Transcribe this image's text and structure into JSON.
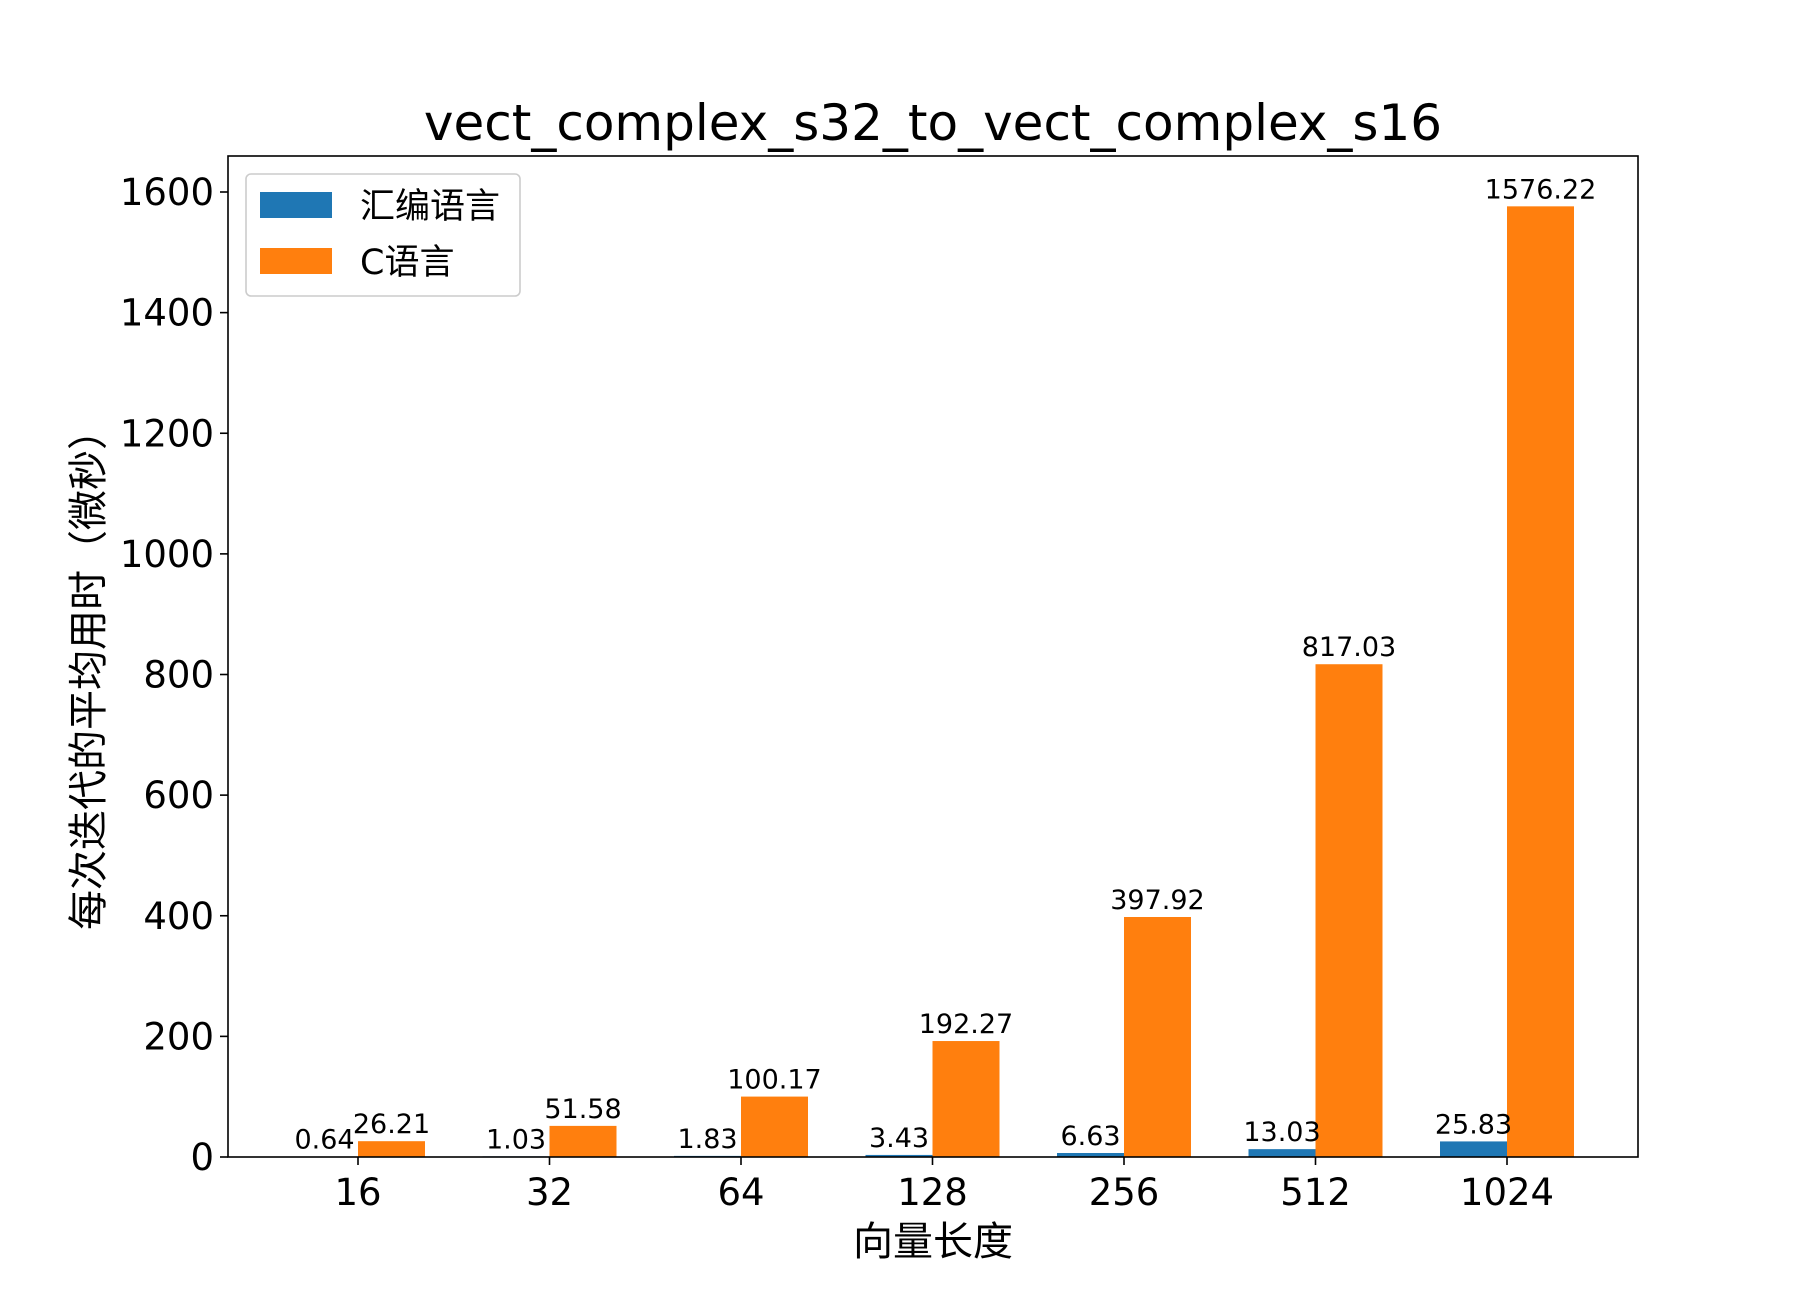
{
  "chart_data": {
    "type": "bar",
    "title": "vect_complex_s32_to_vect_complex_s16",
    "xlabel": "向量长度",
    "ylabel": "每次迭代的平均用时（微秒）",
    "categories": [
      "16",
      "32",
      "64",
      "128",
      "256",
      "512",
      "1024"
    ],
    "series": [
      {
        "name": "汇编语言",
        "color": "#1f77b4",
        "values": [
          0.64,
          1.03,
          1.83,
          3.43,
          6.63,
          13.03,
          25.83
        ]
      },
      {
        "name": "C语言",
        "color": "#ff7f0e",
        "values": [
          26.21,
          51.58,
          100.17,
          192.27,
          397.92,
          817.03,
          1576.22
        ]
      }
    ],
    "value_labels": {
      "汇编语言": [
        "0.64",
        "1.03",
        "1.83",
        "3.43",
        "6.63",
        "13.03",
        "25.83"
      ],
      "C语言": [
        "26.21",
        "51.58",
        "100.17",
        "192.27",
        "397.92",
        "817.03",
        "1576.22"
      ]
    },
    "yticks": [
      0,
      200,
      400,
      600,
      800,
      1000,
      1200,
      1400,
      1600
    ],
    "ylim": [
      0,
      1655
    ],
    "grid": false,
    "legend_position": "upper left"
  }
}
